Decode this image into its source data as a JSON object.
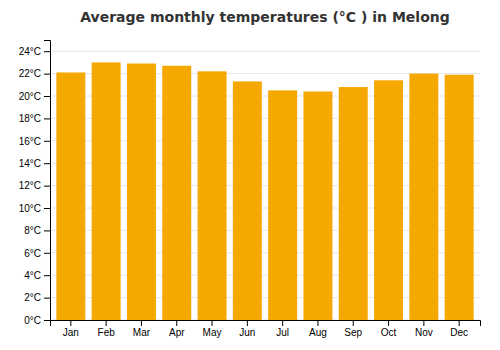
{
  "chart_data": {
    "type": "bar",
    "title": "Average monthly temperatures (°C ) in Melong",
    "categories": [
      "Jan",
      "Feb",
      "Mar",
      "Apr",
      "May",
      "Jun",
      "Jul",
      "Aug",
      "Sep",
      "Oct",
      "Nov",
      "Dec"
    ],
    "values": [
      22.1,
      23.0,
      22.9,
      22.7,
      22.2,
      21.3,
      20.5,
      20.4,
      20.8,
      21.4,
      22.0,
      21.9
    ],
    "color": "#F5A800",
    "ylim": [
      0,
      25
    ],
    "yticks": [
      {
        "value": 0,
        "label": "0°C"
      },
      {
        "value": 2,
        "label": "2°C"
      },
      {
        "value": 4,
        "label": "4°C"
      },
      {
        "value": 6,
        "label": "6°C"
      },
      {
        "value": 8,
        "label": "8°C"
      },
      {
        "value": 10,
        "label": "10°C"
      },
      {
        "value": 12,
        "label": "12°C"
      },
      {
        "value": 14,
        "label": "14°C"
      },
      {
        "value": 16,
        "label": "16°C"
      },
      {
        "value": 18,
        "label": "18°C"
      },
      {
        "value": 20,
        "label": "20°C"
      },
      {
        "value": 22,
        "label": "22°C"
      },
      {
        "value": 24,
        "label": "24°C"
      }
    ],
    "grid": true
  }
}
